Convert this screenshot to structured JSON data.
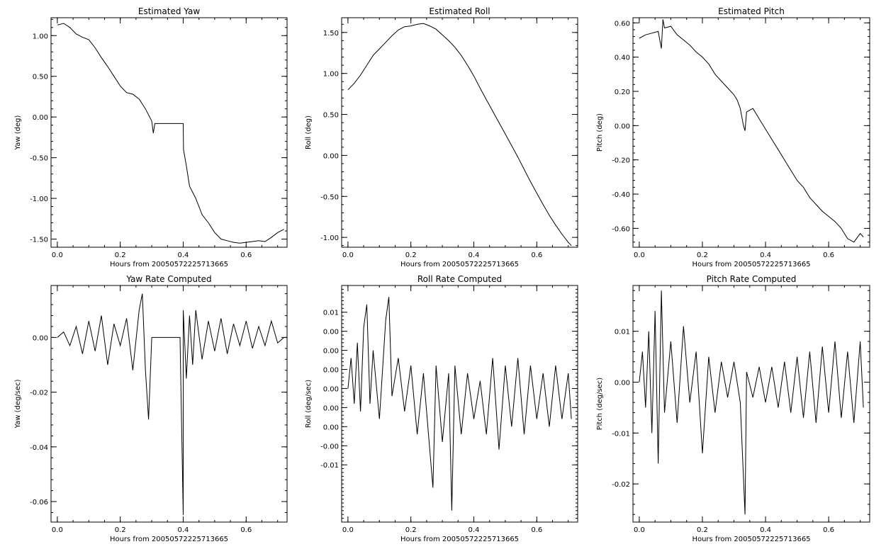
{
  "figure": {
    "background": "#ffffff",
    "line_color": "#000000"
  },
  "chart_data": [
    {
      "type": "line",
      "title": "Estimated Yaw",
      "xlabel": "Hours from 20050572225713665",
      "ylabel": "Yaw (deg)",
      "xlim": [
        -0.02,
        0.73
      ],
      "ylim": [
        -1.6,
        1.22
      ],
      "xticks": [
        0.0,
        0.2,
        0.4,
        0.6
      ],
      "xtick_labels": [
        "0.0",
        "0.2",
        "0.4",
        "0.6"
      ],
      "yticks": [
        1.0,
        0.5,
        0.0,
        -0.5,
        -1.0,
        -1.5
      ],
      "ytick_labels": [
        "1.00",
        "0.50",
        "0.00",
        "-0.50",
        "-1.00",
        "-1.50"
      ],
      "series": [
        {
          "x": [
            0.0,
            0.02,
            0.04,
            0.06,
            0.08,
            0.1,
            0.12,
            0.14,
            0.16,
            0.18,
            0.2,
            0.22,
            0.24,
            0.26,
            0.28,
            0.3,
            0.305,
            0.31,
            0.4,
            0.401,
            0.41,
            0.42,
            0.44,
            0.46,
            0.48,
            0.5,
            0.52,
            0.54,
            0.56,
            0.58,
            0.6,
            0.62,
            0.64,
            0.66,
            0.68,
            0.7,
            0.72
          ],
          "y": [
            1.13,
            1.15,
            1.1,
            1.02,
            0.98,
            0.95,
            0.85,
            0.73,
            0.62,
            0.5,
            0.38,
            0.3,
            0.28,
            0.22,
            0.1,
            -0.05,
            -0.2,
            -0.08,
            -0.08,
            -0.4,
            -0.6,
            -0.85,
            -1.0,
            -1.2,
            -1.3,
            -1.42,
            -1.5,
            -1.52,
            -1.54,
            -1.55,
            -1.54,
            -1.53,
            -1.52,
            -1.53,
            -1.48,
            -1.42,
            -1.38
          ]
        }
      ]
    },
    {
      "type": "line",
      "title": "Estimated Roll",
      "xlabel": "Hours from 20050572225713665",
      "ylabel": "Roll (deg)",
      "xlim": [
        -0.02,
        0.73
      ],
      "ylim": [
        -1.12,
        1.68
      ],
      "xticks": [
        0.0,
        0.2,
        0.4,
        0.6
      ],
      "xtick_labels": [
        "0.0",
        "0.2",
        "0.4",
        "0.6"
      ],
      "yticks": [
        1.5,
        1.0,
        0.5,
        0.0,
        -0.5,
        -1.0
      ],
      "ytick_labels": [
        "1.50",
        "1.00",
        "0.50",
        "0.00",
        "-0.50",
        "-1.00"
      ],
      "series": [
        {
          "x": [
            0.0,
            0.02,
            0.04,
            0.06,
            0.08,
            0.1,
            0.12,
            0.14,
            0.16,
            0.18,
            0.2,
            0.22,
            0.24,
            0.26,
            0.28,
            0.3,
            0.32,
            0.34,
            0.36,
            0.38,
            0.4,
            0.42,
            0.44,
            0.46,
            0.48,
            0.5,
            0.52,
            0.54,
            0.56,
            0.58,
            0.6,
            0.62,
            0.64,
            0.66,
            0.68,
            0.7,
            0.71
          ],
          "y": [
            0.8,
            0.88,
            0.98,
            1.1,
            1.22,
            1.3,
            1.38,
            1.46,
            1.53,
            1.57,
            1.58,
            1.6,
            1.61,
            1.58,
            1.54,
            1.47,
            1.4,
            1.32,
            1.22,
            1.1,
            0.97,
            0.82,
            0.68,
            0.54,
            0.4,
            0.26,
            0.12,
            -0.02,
            -0.17,
            -0.32,
            -0.46,
            -0.6,
            -0.73,
            -0.85,
            -0.96,
            -1.06,
            -1.1
          ]
        }
      ]
    },
    {
      "type": "line",
      "title": "Estimated Pitch",
      "xlabel": "Hours from 20050572225713665",
      "ylabel": "Pitch (deg)",
      "xlim": [
        -0.02,
        0.73
      ],
      "ylim": [
        -0.71,
        0.63
      ],
      "xticks": [
        0.0,
        0.2,
        0.4,
        0.6
      ],
      "xtick_labels": [
        "0.0",
        "0.2",
        "0.4",
        "0.6"
      ],
      "yticks": [
        0.6,
        0.4,
        0.2,
        0.0,
        -0.2,
        -0.4,
        -0.6
      ],
      "ytick_labels": [
        "0.60",
        "0.40",
        "0.20",
        "0.00",
        "-0.20",
        "-0.40",
        "-0.60"
      ],
      "series": [
        {
          "x": [
            0.0,
            0.02,
            0.04,
            0.06,
            0.07,
            0.075,
            0.08,
            0.1,
            0.12,
            0.14,
            0.16,
            0.18,
            0.2,
            0.22,
            0.24,
            0.26,
            0.28,
            0.3,
            0.31,
            0.32,
            0.33,
            0.335,
            0.34,
            0.36,
            0.38,
            0.4,
            0.42,
            0.44,
            0.46,
            0.48,
            0.5,
            0.52,
            0.54,
            0.56,
            0.58,
            0.6,
            0.62,
            0.64,
            0.66,
            0.68,
            0.7,
            0.71
          ],
          "y": [
            0.51,
            0.53,
            0.54,
            0.55,
            0.45,
            0.62,
            0.57,
            0.58,
            0.53,
            0.5,
            0.47,
            0.43,
            0.4,
            0.36,
            0.3,
            0.26,
            0.22,
            0.18,
            0.15,
            0.1,
            0.0,
            -0.03,
            0.08,
            0.1,
            0.04,
            -0.02,
            -0.08,
            -0.14,
            -0.2,
            -0.26,
            -0.32,
            -0.36,
            -0.42,
            -0.46,
            -0.5,
            -0.53,
            -0.56,
            -0.6,
            -0.66,
            -0.68,
            -0.63,
            -0.65
          ]
        }
      ]
    },
    {
      "type": "line",
      "title": "Yaw Rate Computed",
      "xlabel": "Hours from 20050572225713665",
      "ylabel": "Yaw (deg/sec)",
      "xlim": [
        -0.02,
        0.73
      ],
      "ylim": [
        -0.0675,
        0.019
      ],
      "xticks": [
        0.0,
        0.2,
        0.4,
        0.6
      ],
      "xtick_labels": [
        "0.0",
        "0.2",
        "0.4",
        "0.6"
      ],
      "yticks": [
        0.0,
        -0.02,
        -0.04,
        -0.06
      ],
      "ytick_labels": [
        "0.00",
        "-0.02",
        "-0.04",
        "-0.06"
      ],
      "series": [
        {
          "x": [
            0.0,
            0.02,
            0.04,
            0.06,
            0.08,
            0.1,
            0.12,
            0.14,
            0.16,
            0.18,
            0.2,
            0.22,
            0.24,
            0.26,
            0.27,
            0.28,
            0.29,
            0.3,
            0.31,
            0.32,
            0.39,
            0.4,
            0.4,
            0.41,
            0.42,
            0.43,
            0.44,
            0.46,
            0.48,
            0.5,
            0.52,
            0.54,
            0.56,
            0.58,
            0.6,
            0.62,
            0.64,
            0.66,
            0.68,
            0.7,
            0.72
          ],
          "y": [
            0.0,
            0.002,
            -0.003,
            0.004,
            -0.006,
            0.006,
            -0.005,
            0.008,
            -0.01,
            0.005,
            -0.003,
            0.007,
            -0.012,
            0.01,
            0.016,
            -0.012,
            -0.03,
            0.0,
            0.0,
            0.0,
            0.0,
            -0.065,
            0.01,
            -0.015,
            0.008,
            -0.01,
            0.01,
            -0.008,
            0.006,
            -0.005,
            0.007,
            -0.006,
            0.005,
            -0.003,
            0.006,
            -0.004,
            0.004,
            -0.003,
            0.006,
            -0.002,
            0.0
          ]
        }
      ]
    },
    {
      "type": "line",
      "title": "Roll Rate Computed",
      "xlabel": "Hours from 20050572225713665",
      "ylabel": "Roll (deg/sec)",
      "xlim": [
        -0.02,
        0.73
      ],
      "ylim": [
        -0.0175,
        0.0135
      ],
      "xticks": [
        0.0,
        0.2,
        0.4,
        0.6
      ],
      "xtick_labels": [
        "0.0",
        "0.2",
        "0.4",
        "0.6"
      ],
      "yticks": [
        0.01,
        0.0075,
        0.005,
        0.0025,
        0.0,
        -0.0025,
        -0.005,
        -0.0075,
        -0.01
      ],
      "ytick_labels": [
        "0.01",
        "0.00",
        "0.00",
        "0.00",
        "0.00",
        "0.00",
        "0.00",
        "-0.00",
        "-0.01"
      ],
      "series": [
        {
          "x": [
            0.0,
            0.01,
            0.02,
            0.03,
            0.04,
            0.05,
            0.06,
            0.07,
            0.08,
            0.1,
            0.12,
            0.13,
            0.14,
            0.16,
            0.18,
            0.2,
            0.22,
            0.24,
            0.26,
            0.27,
            0.28,
            0.3,
            0.32,
            0.33,
            0.34,
            0.36,
            0.38,
            0.4,
            0.42,
            0.44,
            0.46,
            0.48,
            0.5,
            0.52,
            0.54,
            0.56,
            0.58,
            0.6,
            0.62,
            0.64,
            0.66,
            0.68,
            0.7,
            0.71
          ],
          "y": [
            0.0,
            0.004,
            -0.002,
            0.006,
            -0.003,
            0.008,
            0.011,
            -0.002,
            0.005,
            -0.004,
            0.009,
            0.012,
            -0.001,
            0.004,
            -0.003,
            0.003,
            -0.006,
            0.002,
            -0.008,
            -0.013,
            0.003,
            -0.007,
            0.002,
            -0.016,
            0.003,
            -0.006,
            0.002,
            -0.004,
            0.001,
            -0.006,
            0.004,
            -0.008,
            0.003,
            -0.005,
            0.004,
            -0.006,
            0.003,
            -0.004,
            0.002,
            -0.005,
            0.003,
            -0.004,
            0.002,
            -0.004
          ]
        }
      ]
    },
    {
      "type": "line",
      "title": "Pitch Rate Computed",
      "xlabel": "Hours from 20050572225713665",
      "ylabel": "Pitch (deg/sec)",
      "xlim": [
        -0.02,
        0.73
      ],
      "ylim": [
        -0.0275,
        0.019
      ],
      "xticks": [
        0.0,
        0.2,
        0.4,
        0.6
      ],
      "xtick_labels": [
        "0.0",
        "0.2",
        "0.4",
        "0.6"
      ],
      "yticks": [
        0.01,
        0.0,
        -0.01,
        -0.02
      ],
      "ytick_labels": [
        "0.01",
        "0.00",
        "-0.01",
        "-0.02"
      ],
      "series": [
        {
          "x": [
            0.0,
            0.01,
            0.02,
            0.03,
            0.04,
            0.05,
            0.06,
            0.07,
            0.08,
            0.1,
            0.12,
            0.14,
            0.16,
            0.18,
            0.2,
            0.22,
            0.24,
            0.26,
            0.28,
            0.3,
            0.32,
            0.335,
            0.34,
            0.36,
            0.38,
            0.4,
            0.42,
            0.44,
            0.46,
            0.48,
            0.5,
            0.52,
            0.54,
            0.56,
            0.58,
            0.6,
            0.62,
            0.64,
            0.66,
            0.68,
            0.7,
            0.71
          ],
          "y": [
            0.0,
            0.006,
            -0.005,
            0.01,
            -0.01,
            0.014,
            -0.016,
            0.018,
            -0.006,
            0.008,
            -0.008,
            0.011,
            -0.004,
            0.006,
            -0.014,
            0.005,
            -0.006,
            0.004,
            -0.003,
            0.004,
            -0.004,
            -0.026,
            0.002,
            -0.003,
            0.003,
            -0.004,
            0.003,
            -0.005,
            0.004,
            -0.006,
            0.005,
            -0.007,
            0.006,
            -0.008,
            0.007,
            -0.006,
            0.008,
            -0.007,
            0.006,
            -0.008,
            0.008,
            -0.005
          ]
        }
      ]
    }
  ]
}
